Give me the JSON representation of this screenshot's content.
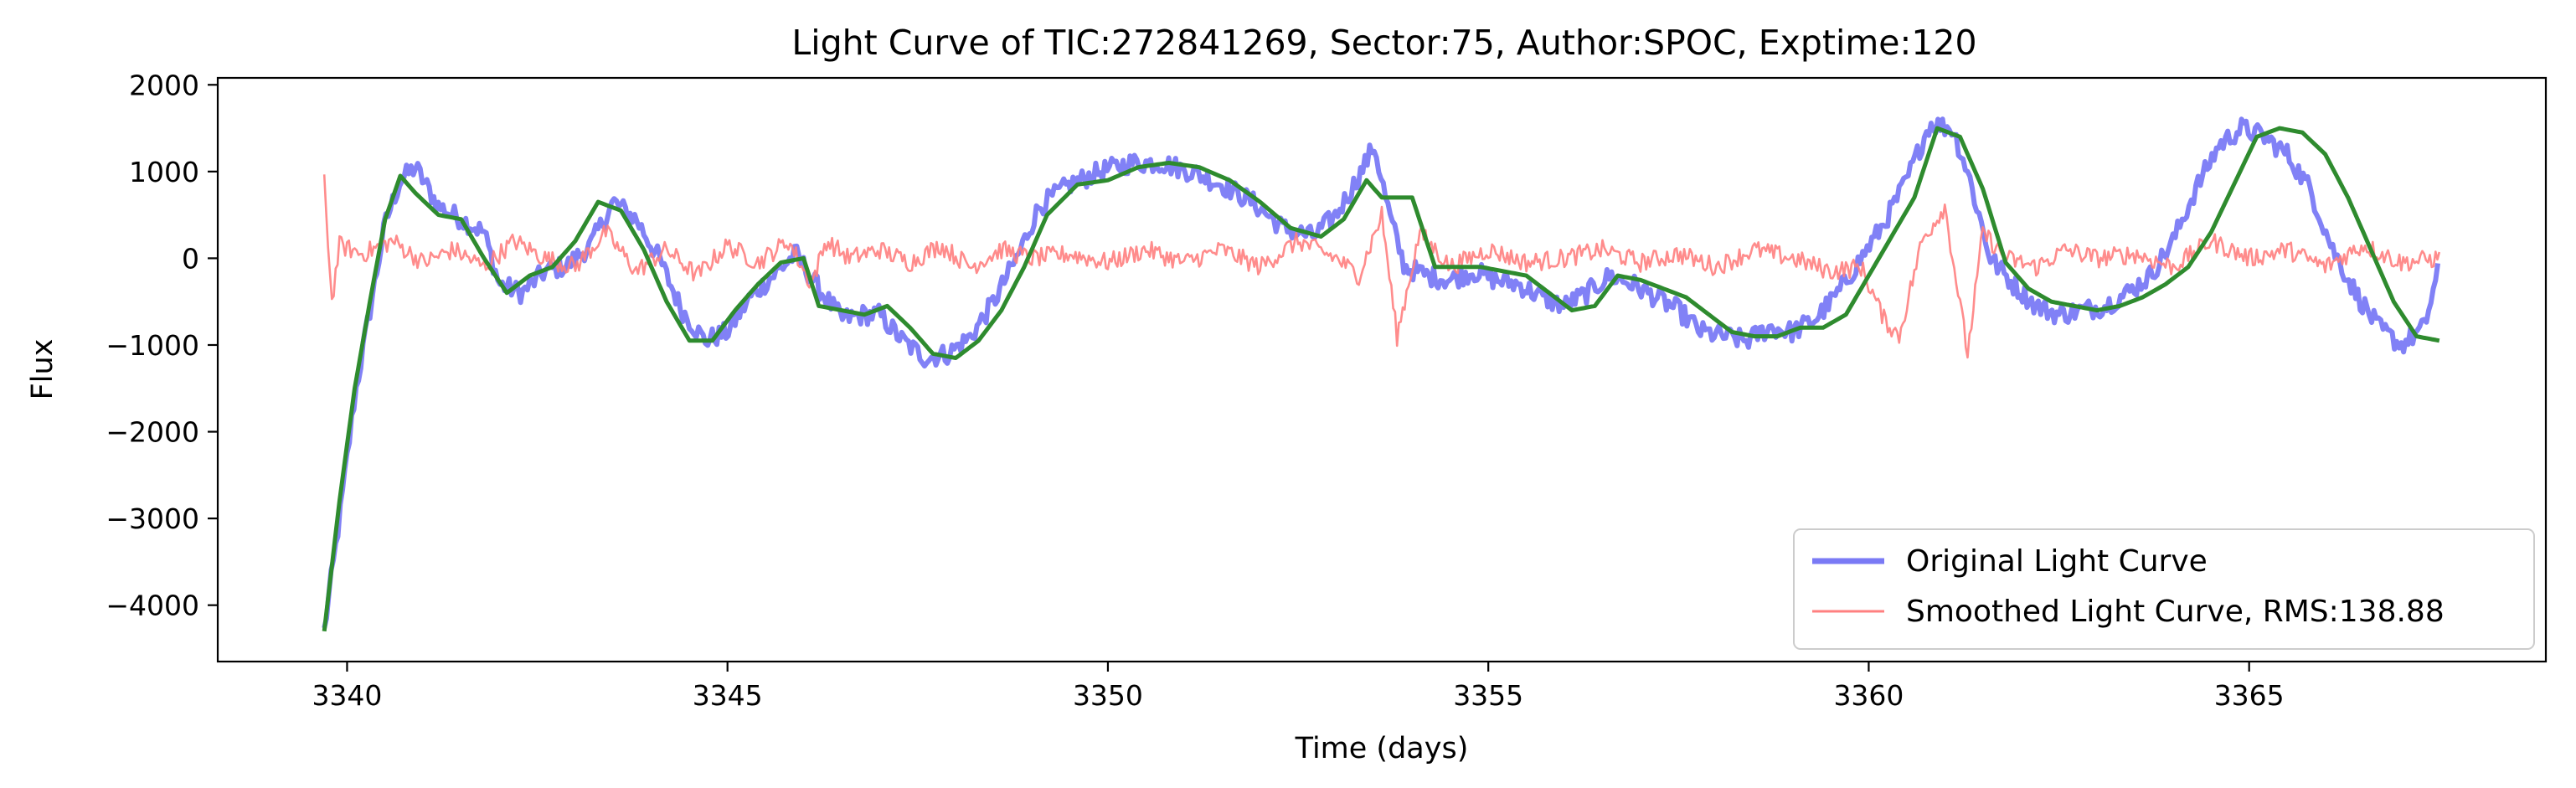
{
  "chart_data": {
    "type": "line",
    "title": "Light Curve of TIC:272841269, Sector:75, Author:SPOC, Exptime:120",
    "xlabel": "Time (days)",
    "ylabel": "Flux",
    "xlim": [
      3338.3,
      3368.9
    ],
    "ylim": [
      -4650,
      2080
    ],
    "x_ticks": [
      3340,
      3345,
      3350,
      3355,
      3360,
      3365
    ],
    "x_tick_labels": [
      "3340",
      "3345",
      "3350",
      "3355",
      "3360",
      "3365"
    ],
    "y_ticks": [
      -4000,
      -3000,
      -2000,
      -1000,
      0,
      1000,
      2000
    ],
    "y_tick_labels": [
      "−4000",
      "−3000",
      "−2000",
      "−1000",
      "0",
      "1000",
      "2000"
    ],
    "grid": false,
    "legend_position": "lower right",
    "colors": {
      "original": "#7a7af5",
      "smoothed": "#ff8080",
      "trend": "#2e8b2e"
    },
    "series": [
      {
        "name": "Original Light Curve",
        "style": "thick noisy line",
        "x": [
          3339.7,
          3339.9,
          3340.1,
          3340.3,
          3340.5,
          3340.7,
          3340.9,
          3341.2,
          3341.5,
          3341.8,
          3342.0,
          3342.3,
          3342.6,
          3342.9,
          3343.2,
          3343.5,
          3343.8,
          3344.1,
          3344.4,
          3344.7,
          3345.0,
          3345.3,
          3345.6,
          3345.9,
          3346.2,
          3346.5,
          3346.8,
          3347.0,
          3347.3,
          3347.6,
          3347.9,
          3348.2,
          3348.5,
          3348.8,
          3349.1,
          3349.5,
          3349.9,
          3350.3,
          3350.7,
          3351.1,
          3351.5,
          3351.9,
          3352.3,
          3352.7,
          3353.0,
          3353.3,
          3353.5,
          3353.7,
          3353.9,
          3354.2,
          3354.5,
          3354.8,
          3355.1,
          3355.4,
          3355.7,
          3356.0,
          3356.3,
          3356.6,
          3356.9,
          3357.2,
          3357.5,
          3357.8,
          3358.1,
          3358.4,
          3358.7,
          3359.0,
          3359.3,
          3359.6,
          3359.9,
          3360.2,
          3360.5,
          3360.8,
          3361.1,
          3361.3,
          3361.6,
          3361.9,
          3362.2,
          3362.5,
          3362.8,
          3363.1,
          3363.4,
          3363.7,
          3364.0,
          3364.3,
          3364.6,
          3364.9,
          3365.2,
          3365.5,
          3365.8,
          3366.1,
          3366.4,
          3366.7,
          3367.0,
          3367.3,
          3367.5
        ],
        "y": [
          -4300,
          -3000,
          -1600,
          -600,
          400,
          900,
          1050,
          600,
          450,
          300,
          -300,
          -400,
          -150,
          -80,
          150,
          650,
          450,
          0,
          -600,
          -950,
          -850,
          -450,
          -200,
          50,
          -350,
          -700,
          -650,
          -650,
          -950,
          -1150,
          -1100,
          -900,
          -500,
          0,
          600,
          850,
          1000,
          1100,
          1100,
          1000,
          850,
          650,
          350,
          250,
          500,
          950,
          1300,
          500,
          -100,
          -200,
          -250,
          -150,
          -250,
          -300,
          -450,
          -550,
          -400,
          -200,
          -300,
          -450,
          -600,
          -850,
          -900,
          -950,
          -800,
          -850,
          -700,
          -400,
          0,
          400,
          900,
          1550,
          1500,
          1000,
          0,
          -300,
          -550,
          -650,
          -600,
          -550,
          -400,
          -200,
          200,
          800,
          1300,
          1500,
          1400,
          1200,
          800,
          100,
          -400,
          -800,
          -1000,
          -800,
          -100
        ]
      },
      {
        "name": "Smoothed Light Curve, RMS:138.88",
        "style": "thin noisy line",
        "x": [
          3339.7,
          3339.8,
          3339.9,
          3340.2,
          3340.6,
          3341.0,
          3341.4,
          3341.8,
          3342.2,
          3342.6,
          3343.0,
          3343.4,
          3343.8,
          3344.2,
          3344.6,
          3345.0,
          3345.4,
          3345.8,
          3346.1,
          3346.3,
          3346.6,
          3347.0,
          3347.4,
          3347.8,
          3348.2,
          3348.6,
          3349.0,
          3349.5,
          3350.0,
          3350.5,
          3351.0,
          3351.5,
          3352.0,
          3352.5,
          3353.0,
          3353.3,
          3353.6,
          3353.8,
          3354.1,
          3354.5,
          3355.0,
          3355.5,
          3356.0,
          3356.5,
          3357.0,
          3357.5,
          3358.0,
          3358.5,
          3359.0,
          3359.5,
          3359.9,
          3360.2,
          3360.4,
          3360.7,
          3361.0,
          3361.3,
          3361.5,
          3361.8,
          3362.2,
          3362.6,
          3363.0,
          3363.5,
          3364.0,
          3364.5,
          3365.0,
          3365.5,
          3366.0,
          3366.5,
          3367.0,
          3367.5
        ],
        "y": [
          900,
          -500,
          150,
          50,
          200,
          -50,
          100,
          -100,
          200,
          0,
          -100,
          300,
          -150,
          100,
          -200,
          150,
          -50,
          200,
          -300,
          200,
          0,
          100,
          -50,
          150,
          -100,
          100,
          0,
          50,
          -50,
          100,
          -50,
          100,
          -100,
          200,
          0,
          -200,
          500,
          -900,
          300,
          -100,
          100,
          -50,
          0,
          100,
          -50,
          50,
          -100,
          100,
          0,
          -150,
          -100,
          -700,
          -900,
          200,
          600,
          -1100,
          300,
          0,
          -100,
          100,
          0,
          50,
          -100,
          200,
          0,
          100,
          -100,
          150,
          -50,
          0
        ]
      },
      {
        "name": "",
        "style": "trend line",
        "x": [
          3339.7,
          3339.9,
          3340.1,
          3340.3,
          3340.5,
          3340.7,
          3340.9,
          3341.2,
          3341.5,
          3341.8,
          3342.1,
          3342.4,
          3342.7,
          3343.0,
          3343.3,
          3343.6,
          3343.9,
          3344.2,
          3344.5,
          3344.8,
          3345.1,
          3345.4,
          3345.7,
          3346.0,
          3346.2,
          3346.5,
          3346.8,
          3347.1,
          3347.4,
          3347.7,
          3348.0,
          3348.3,
          3348.6,
          3348.9,
          3349.2,
          3349.6,
          3350.0,
          3350.4,
          3350.8,
          3351.2,
          3351.6,
          3352.0,
          3352.4,
          3352.8,
          3353.1,
          3353.4,
          3353.6,
          3354.0,
          3354.3,
          3354.6,
          3354.9,
          3355.2,
          3355.5,
          3355.8,
          3356.1,
          3356.4,
          3356.7,
          3357.0,
          3357.3,
          3357.6,
          3357.9,
          3358.2,
          3358.5,
          3358.8,
          3359.1,
          3359.4,
          3359.7,
          3360.0,
          3360.3,
          3360.6,
          3360.9,
          3361.2,
          3361.5,
          3361.8,
          3362.1,
          3362.4,
          3362.7,
          3363.0,
          3363.3,
          3363.6,
          3363.9,
          3364.2,
          3364.5,
          3364.8,
          3365.1,
          3365.4,
          3365.7,
          3366.0,
          3366.3,
          3366.6,
          3366.9,
          3367.2,
          3367.5
        ],
        "y": [
          -4300,
          -2800,
          -1500,
          -500,
          450,
          950,
          750,
          500,
          450,
          0,
          -400,
          -200,
          -100,
          200,
          650,
          550,
          100,
          -500,
          -950,
          -950,
          -600,
          -300,
          -50,
          0,
          -550,
          -600,
          -650,
          -550,
          -800,
          -1100,
          -1150,
          -950,
          -600,
          -100,
          500,
          850,
          900,
          1050,
          1100,
          1050,
          900,
          650,
          350,
          250,
          450,
          900,
          700,
          700,
          -100,
          -100,
          -100,
          -150,
          -200,
          -400,
          -600,
          -550,
          -200,
          -250,
          -350,
          -450,
          -650,
          -850,
          -900,
          -900,
          -800,
          -800,
          -650,
          -200,
          250,
          700,
          1500,
          1400,
          800,
          -50,
          -350,
          -500,
          -550,
          -600,
          -550,
          -450,
          -300,
          -100,
          300,
          850,
          1400,
          1500,
          1450,
          1200,
          700,
          100,
          -500,
          -900,
          -950
        ]
      }
    ]
  }
}
